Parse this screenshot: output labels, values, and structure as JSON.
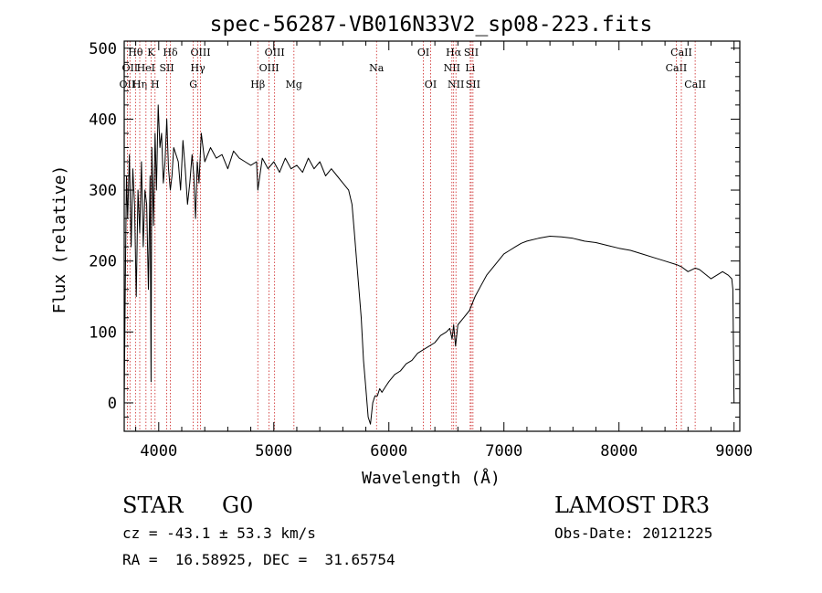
{
  "chart_data": {
    "type": "line",
    "title": "spec-56287-VB016N33V2_sp08-223.fits",
    "xlabel": "Wavelength (Å)",
    "ylabel": "Flux (relative)",
    "xlim": [
      3700,
      9050
    ],
    "ylim": [
      -40,
      510
    ],
    "xticks": [
      4000,
      5000,
      6000,
      7000,
      8000,
      9000
    ],
    "yticks": [
      0,
      100,
      200,
      300,
      400,
      500
    ],
    "x_minor_step": 200,
    "y_minor_step": 20,
    "spectrum": {
      "name": "flux",
      "x": [
        3700,
        3710,
        3720,
        3730,
        3745,
        3760,
        3775,
        3790,
        3805,
        3820,
        3835,
        3850,
        3865,
        3880,
        3895,
        3910,
        3925,
        3933,
        3940,
        3955,
        3968,
        3980,
        3995,
        4010,
        4025,
        4040,
        4055,
        4070,
        4085,
        4101,
        4115,
        4130,
        4150,
        4170,
        4190,
        4210,
        4230,
        4250,
        4270,
        4290,
        4305,
        4320,
        4335,
        4350,
        4370,
        4400,
        4450,
        4500,
        4550,
        4600,
        4650,
        4700,
        4750,
        4800,
        4850,
        4861,
        4900,
        4950,
        5000,
        5050,
        5100,
        5150,
        5200,
        5250,
        5300,
        5350,
        5400,
        5450,
        5500,
        5550,
        5600,
        5650,
        5680,
        5700,
        5720,
        5740,
        5760,
        5780,
        5800,
        5820,
        5840,
        5860,
        5880,
        5900,
        5920,
        5940,
        5960,
        5980,
        6000,
        6050,
        6100,
        6150,
        6200,
        6250,
        6300,
        6350,
        6400,
        6450,
        6500,
        6530,
        6550,
        6563,
        6580,
        6600,
        6650,
        6700,
        6750,
        6800,
        6850,
        6900,
        6950,
        7000,
        7050,
        7100,
        7150,
        7200,
        7300,
        7400,
        7500,
        7600,
        7700,
        7800,
        7900,
        8000,
        8100,
        8200,
        8300,
        8400,
        8500,
        8542,
        8600,
        8662,
        8700,
        8800,
        8900,
        8950,
        8980,
        8990,
        9000
      ],
      "y": [
        0,
        180,
        320,
        260,
        350,
        220,
        330,
        280,
        150,
        300,
        240,
        340,
        220,
        300,
        280,
        160,
        320,
        30,
        360,
        250,
        380,
        300,
        420,
        360,
        380,
        310,
        340,
        400,
        330,
        300,
        320,
        360,
        350,
        340,
        300,
        370,
        330,
        280,
        310,
        350,
        320,
        260,
        340,
        310,
        380,
        340,
        360,
        345,
        350,
        330,
        355,
        345,
        340,
        335,
        340,
        300,
        345,
        330,
        340,
        325,
        345,
        330,
        335,
        325,
        345,
        330,
        340,
        320,
        330,
        320,
        310,
        300,
        280,
        240,
        200,
        160,
        120,
        60,
        20,
        -20,
        -30,
        0,
        10,
        10,
        20,
        15,
        20,
        25,
        30,
        40,
        45,
        55,
        60,
        70,
        75,
        80,
        85,
        95,
        100,
        105,
        90,
        110,
        80,
        110,
        120,
        130,
        150,
        165,
        180,
        190,
        200,
        210,
        215,
        220,
        225,
        228,
        232,
        235,
        234,
        232,
        228,
        226,
        222,
        218,
        215,
        210,
        205,
        200,
        195,
        192,
        185,
        190,
        188,
        175,
        185,
        180,
        175,
        160,
        0
      ]
    },
    "lines": [
      {
        "x": 3727,
        "label": "OII",
        "row": 2
      },
      {
        "x": 3750,
        "label": "OII",
        "row": 1
      },
      {
        "x": 3798,
        "label": "Hθ",
        "row": 0
      },
      {
        "x": 3835,
        "label": "Hη",
        "row": 2
      },
      {
        "x": 3889,
        "label": "HeI",
        "row": 1
      },
      {
        "x": 3933,
        "label": "K",
        "row": 0
      },
      {
        "x": 3968,
        "label": "H",
        "row": 2
      },
      {
        "x": 4070,
        "label": "SII",
        "row": 1
      },
      {
        "x": 4101,
        "label": "Hδ",
        "row": 0
      },
      {
        "x": 4300,
        "label": "G",
        "row": 2
      },
      {
        "x": 4340,
        "label": "Hγ",
        "row": 1
      },
      {
        "x": 4363,
        "label": "OIII",
        "row": 0
      },
      {
        "x": 4861,
        "label": "Hβ",
        "row": 2
      },
      {
        "x": 4959,
        "label": "OIII",
        "row": 1
      },
      {
        "x": 5007,
        "label": "OIII",
        "row": 0
      },
      {
        "x": 5175,
        "label": "Mg",
        "row": 2
      },
      {
        "x": 5893,
        "label": "Na",
        "row": 1
      },
      {
        "x": 6300,
        "label": "OI",
        "row": 0
      },
      {
        "x": 6363,
        "label": "OI",
        "row": 2
      },
      {
        "x": 6548,
        "label": "NII",
        "row": 1
      },
      {
        "x": 6563,
        "label": "Hα",
        "row": 0
      },
      {
        "x": 6583,
        "label": "NII",
        "row": 2
      },
      {
        "x": 6707,
        "label": "Li",
        "row": 1
      },
      {
        "x": 6716,
        "label": "SII",
        "row": 0
      },
      {
        "x": 6731,
        "label": "SII",
        "row": 2
      },
      {
        "x": 8498,
        "label": "CaII",
        "row": 1
      },
      {
        "x": 8542,
        "label": "CaII",
        "row": 0
      },
      {
        "x": 8662,
        "label": "CaII",
        "row": 2
      }
    ]
  },
  "info": {
    "class": "STAR",
    "subclass": "G0",
    "survey": "LAMOST DR3",
    "redshift": "cz = -43.1 ± 53.3 km/s",
    "obs_date": "Obs-Date: 20121225",
    "coords": "RA =  16.58925, DEC =  31.65754"
  },
  "colors": {
    "line_marker": "#cc2222",
    "spectrum": "#000000",
    "axes": "#000000"
  }
}
